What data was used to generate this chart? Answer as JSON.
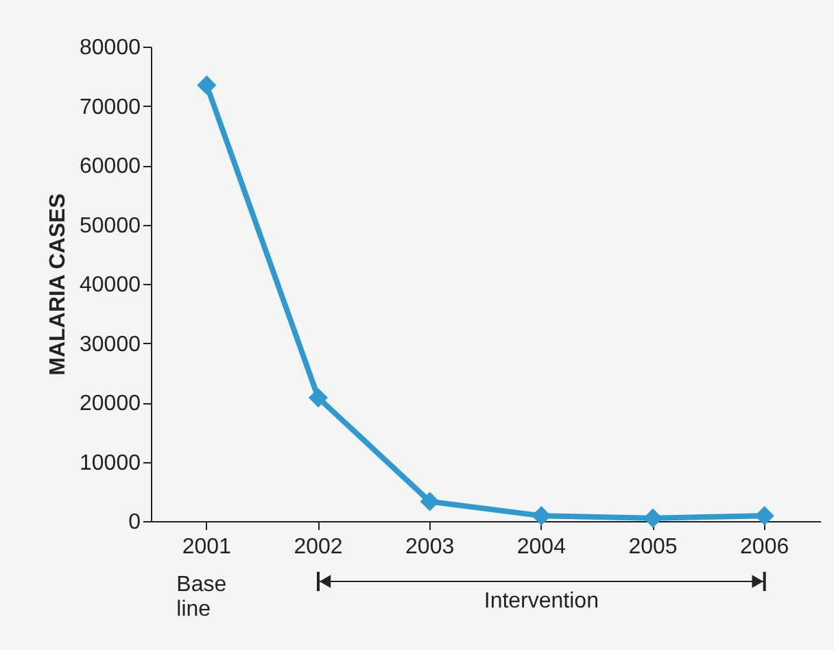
{
  "chart_data": {
    "type": "line",
    "ylabel": "MALARIA CASES",
    "categories": [
      "2001",
      "2002",
      "2003",
      "2004",
      "2005",
      "2006"
    ],
    "series": [
      {
        "color": "#3399cc",
        "values": [
          73500,
          20800,
          3300,
          900,
          500,
          900
        ]
      }
    ],
    "ylim": [
      0,
      80000
    ],
    "yticks": [
      0,
      10000,
      20000,
      30000,
      40000,
      50000,
      60000,
      70000,
      80000
    ],
    "grid": false,
    "legend": false,
    "marker": "diamond",
    "line_style": "solid",
    "annotations": [
      "Base line",
      "Intervention"
    ]
  }
}
